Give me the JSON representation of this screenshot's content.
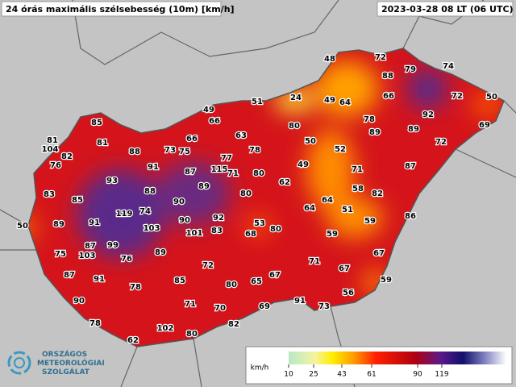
{
  "header": {
    "title": "24 órás maximális szélsebesség (10m) [km/h]",
    "timestamp": "2023-03-28 08 LT (06 UTC)"
  },
  "stations": [
    48,
    72,
    79,
    74,
    88,
    51,
    24,
    49,
    64,
    66,
    72,
    50,
    49,
    66,
    78,
    92,
    69,
    85,
    80,
    63,
    89,
    89,
    81,
    66,
    50,
    72,
    81,
    104,
    88,
    73,
    75,
    78,
    52,
    82,
    77,
    91,
    115,
    71,
    49,
    71,
    87,
    76,
    87,
    80,
    93,
    62,
    89,
    58,
    88,
    80,
    82,
    83,
    85,
    90,
    64,
    119,
    74,
    92,
    64,
    51,
    86,
    90,
    89,
    91,
    53,
    80,
    59,
    50,
    103,
    101,
    83,
    68,
    59,
    87,
    99,
    76,
    75,
    103,
    89,
    71,
    67,
    72,
    67,
    87,
    91,
    67,
    85,
    80,
    65,
    59,
    78,
    56,
    90,
    71,
    70,
    69,
    91,
    73,
    78,
    82,
    102,
    80,
    62
  ],
  "legend": {
    "unit": "km/h",
    "ticks": [
      10,
      25,
      43,
      61,
      90,
      119
    ]
  },
  "logo": {
    "line1": "ORSZÁGOS",
    "line2": "METEOROLÓGIAI",
    "line3": "SZOLGÁLAT"
  }
}
